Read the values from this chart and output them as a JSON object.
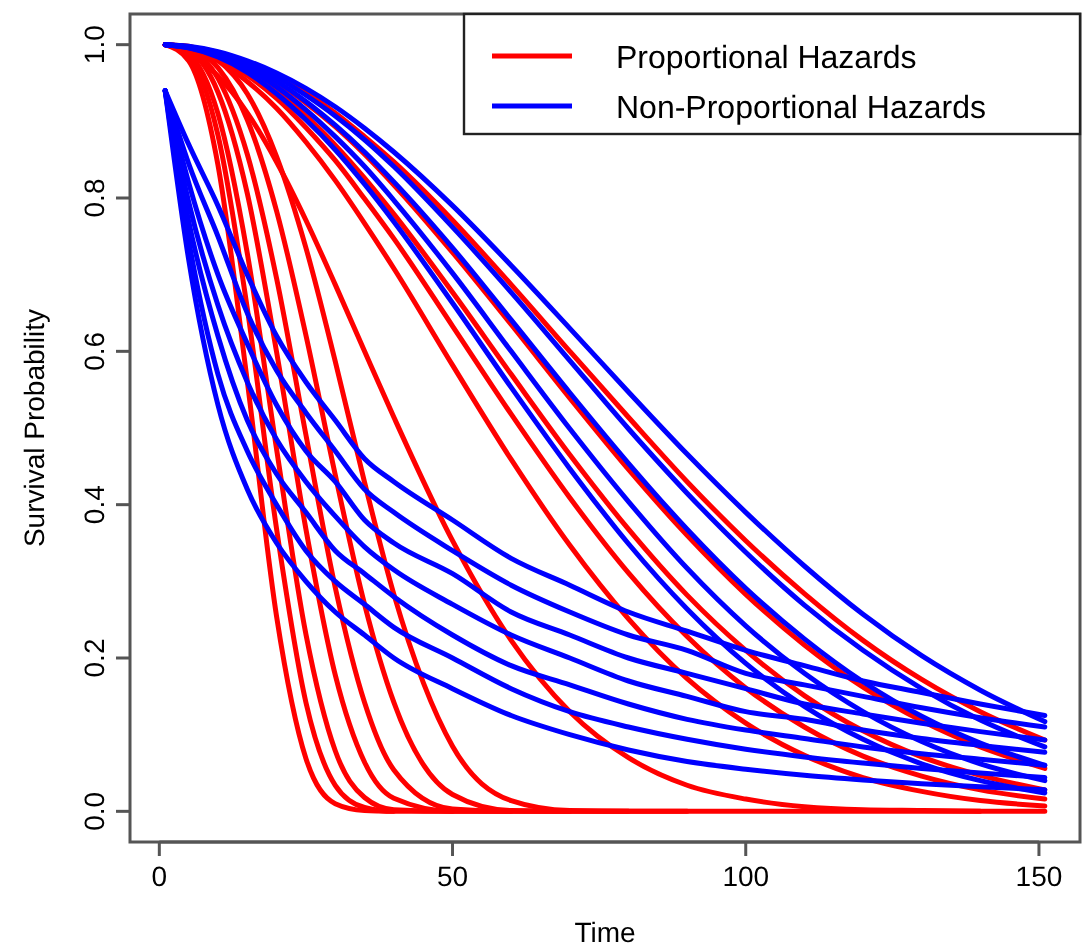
{
  "chart_data": {
    "type": "line",
    "xlabel": "Time",
    "ylabel": "Survival Probability",
    "x": [
      1,
      5,
      10,
      15,
      20,
      25,
      30,
      35,
      40,
      50,
      60,
      70,
      80,
      90,
      100,
      110,
      120,
      130,
      140,
      151
    ],
    "xlim": [
      -5,
      157
    ],
    "xticks": [
      0,
      50,
      100,
      150
    ],
    "ylim": [
      -0.04,
      1.04
    ],
    "yticks": [
      {
        "value": 0,
        "label": "0.0"
      },
      {
        "value": 0.2,
        "label": "0.2"
      },
      {
        "value": 0.4,
        "label": "0.4"
      },
      {
        "value": 0.6,
        "label": "0.6"
      },
      {
        "value": 0.8,
        "label": "0.8"
      },
      {
        "value": 1,
        "label": "1.0"
      }
    ],
    "grid": false,
    "legend": "top right",
    "marker": "none",
    "line_style": "solid",
    "series": [
      {
        "name": "Proportional Hazards",
        "color": "#ff0000",
        "values": [
          1,
          0.979,
          0.843,
          0.561,
          0.254,
          0.069,
          0.01,
          0.001,
          0,
          null,
          null,
          null,
          null,
          null,
          null,
          null,
          null,
          null,
          null,
          null
        ]
      },
      {
        "color": "#ff0000",
        "values": [
          1,
          0.985,
          0.882,
          0.656,
          0.368,
          0.142,
          0.034,
          0.005,
          0,
          0,
          null,
          null,
          null,
          null,
          null,
          null,
          null,
          null,
          null,
          null
        ]
      },
      {
        "color": "#ff0000",
        "values": [
          1,
          0.988,
          0.91,
          0.728,
          0.472,
          0.231,
          0.079,
          0.018,
          0.002,
          0,
          0,
          null,
          null,
          null,
          null,
          null,
          null,
          null,
          null,
          null
        ]
      },
      {
        "color": "#ff0000",
        "values": [
          1,
          0.992,
          0.938,
          0.806,
          0.599,
          0.368,
          0.178,
          0.064,
          0.017,
          0,
          0,
          0,
          null,
          null,
          null,
          null,
          null,
          null,
          null,
          null
        ]
      },
      {
        "color": "#ff0000",
        "values": [
          1,
          0.994,
          0.956,
          0.857,
          0.695,
          0.491,
          0.292,
          0.142,
          0.054,
          0.003,
          0,
          0,
          0,
          null,
          null,
          null,
          null,
          null,
          null,
          null
        ]
      },
      {
        "color": "#ff0000",
        "values": [
          1,
          0.996,
          0.97,
          0.902,
          0.783,
          0.621,
          0.439,
          0.27,
          0.142,
          0.022,
          0.001,
          0,
          0,
          0,
          null,
          null,
          null,
          null,
          null,
          null
        ]
      },
      {
        "color": "#ff0000",
        "values": [
          1,
          0.998,
          0.98,
          0.936,
          0.854,
          0.735,
          0.587,
          0.429,
          0.283,
          0.085,
          0.014,
          0.001,
          0,
          0,
          0,
          0,
          0,
          0,
          0,
          0
        ]
      },
      {
        "color": "#ff0000",
        "values": [
          1,
          0.99,
          0.959,
          0.911,
          0.847,
          0.771,
          0.687,
          0.6,
          0.514,
          0.353,
          0.223,
          0.13,
          0.07,
          0.034,
          0.016,
          0.006,
          0.002,
          0.001,
          0,
          null
        ]
      },
      {
        "color": "#ff0000",
        "values": [
          1,
          0.995,
          0.979,
          0.952,
          0.917,
          0.873,
          0.823,
          0.767,
          0.708,
          0.582,
          0.459,
          0.347,
          0.251,
          0.173,
          0.115,
          0.073,
          0.044,
          0.026,
          0.014,
          0.007
        ]
      },
      {
        "color": "#ff0000",
        "values": [
          1,
          0.995,
          0.982,
          0.96,
          0.93,
          0.892,
          0.849,
          0.799,
          0.747,
          0.633,
          0.518,
          0.409,
          0.311,
          0.228,
          0.161,
          0.11,
          0.072,
          0.046,
          0.028,
          0.016
        ]
      },
      {
        "color": "#ff0000",
        "values": [
          1,
          0.996,
          0.985,
          0.965,
          0.939,
          0.907,
          0.869,
          0.826,
          0.779,
          0.677,
          0.57,
          0.465,
          0.368,
          0.282,
          0.21,
          0.151,
          0.105,
          0.071,
          0.047,
          0.028
        ]
      },
      {
        "color": "#ff0000",
        "values": [
          1,
          0.997,
          0.987,
          0.972,
          0.951,
          0.924,
          0.893,
          0.857,
          0.817,
          0.729,
          0.635,
          0.539,
          0.446,
          0.36,
          0.283,
          0.217,
          0.162,
          0.118,
          0.084,
          0.056
        ]
      },
      {
        "color": "#ff0000",
        "values": [
          1,
          0.997,
          0.99,
          0.977,
          0.959,
          0.937,
          0.911,
          0.88,
          0.847,
          0.771,
          0.687,
          0.6,
          0.514,
          0.43,
          0.353,
          0.284,
          0.223,
          0.172,
          0.13,
          0.093
        ]
      },
      {
        "name": "Non-Proportional Hazards",
        "color": "#0000ff",
        "values": [
          1,
          0.996,
          0.984,
          0.964,
          0.936,
          0.902,
          0.863,
          0.818,
          0.769,
          0.663,
          0.553,
          0.447,
          0.349,
          0.264,
          0.193,
          0.137,
          0.094,
          0.062,
          0.04,
          0.024
        ]
      },
      {
        "color": "#0000ff",
        "values": [
          1,
          0.996,
          0.986,
          0.969,
          0.945,
          0.915,
          0.88,
          0.841,
          0.797,
          0.702,
          0.6,
          0.499,
          0.404,
          0.317,
          0.242,
          0.18,
          0.13,
          0.091,
          0.062,
          0.04
        ]
      },
      {
        "color": "#0000ff",
        "values": [
          1,
          0.997,
          0.988,
          0.973,
          0.952,
          0.926,
          0.895,
          0.86,
          0.821,
          0.735,
          0.641,
          0.546,
          0.454,
          0.368,
          0.291,
          0.225,
          0.169,
          0.124,
          0.089,
          0.06
        ]
      },
      {
        "color": "#0000ff",
        "values": [
          1,
          0.997,
          0.989,
          0.976,
          0.958,
          0.934,
          0.907,
          0.876,
          0.841,
          0.762,
          0.677,
          0.588,
          0.499,
          0.415,
          0.338,
          0.269,
          0.21,
          0.16,
          0.119,
          0.084
        ]
      },
      {
        "color": "#0000ff",
        "values": [
          1,
          0.998,
          0.991,
          0.979,
          0.963,
          0.943,
          0.919,
          0.891,
          0.86,
          0.79,
          0.712,
          0.63,
          0.547,
          0.466,
          0.39,
          0.32,
          0.257,
          0.203,
          0.158,
          0.117
        ]
      },
      {
        "color": "#0000ff",
        "values": [
          0.94,
          0.72,
          0.53,
          0.42,
          0.35,
          0.3,
          0.26,
          0.23,
          0.2,
          0.16,
          0.125,
          0.1,
          0.08,
          0.065,
          0.055,
          0.047,
          0.041,
          0.036,
          0.032,
          0.028
        ]
      },
      {
        "color": "#0000ff",
        "values": [
          0.94,
          0.745,
          0.57,
          0.47,
          0.4,
          0.34,
          0.3,
          0.27,
          0.24,
          0.2,
          0.16,
          0.13,
          0.11,
          0.094,
          0.081,
          0.071,
          0.063,
          0.056,
          0.05,
          0.044
        ]
      },
      {
        "color": "#0000ff",
        "values": [
          0.94,
          0.77,
          0.62,
          0.51,
          0.44,
          0.39,
          0.34,
          0.31,
          0.28,
          0.23,
          0.19,
          0.165,
          0.14,
          0.12,
          0.106,
          0.095,
          0.084,
          0.075,
          0.068,
          0.06
        ]
      },
      {
        "color": "#0000ff",
        "values": [
          0.94,
          0.795,
          0.66,
          0.56,
          0.485,
          0.43,
          0.385,
          0.345,
          0.315,
          0.27,
          0.23,
          0.2,
          0.17,
          0.15,
          0.13,
          0.12,
          0.106,
          0.095,
          0.086,
          0.077
        ]
      },
      {
        "color": "#0000ff",
        "values": [
          0.94,
          0.82,
          0.7,
          0.61,
          0.53,
          0.47,
          0.43,
          0.38,
          0.35,
          0.31,
          0.26,
          0.23,
          0.2,
          0.18,
          0.16,
          0.14,
          0.127,
          0.115,
          0.104,
          0.093
        ]
      },
      {
        "color": "#0000ff",
        "values": [
          0.94,
          0.845,
          0.75,
          0.65,
          0.575,
          0.52,
          0.47,
          0.42,
          0.39,
          0.34,
          0.295,
          0.26,
          0.23,
          0.21,
          0.18,
          0.165,
          0.15,
          0.135,
          0.122,
          0.11
        ]
      },
      {
        "color": "#0000ff",
        "values": [
          0.94,
          0.87,
          0.79,
          0.7,
          0.62,
          0.56,
          0.51,
          0.46,
          0.43,
          0.38,
          0.33,
          0.295,
          0.26,
          0.235,
          0.21,
          0.19,
          0.17,
          0.155,
          0.14,
          0.125
        ]
      }
    ]
  }
}
